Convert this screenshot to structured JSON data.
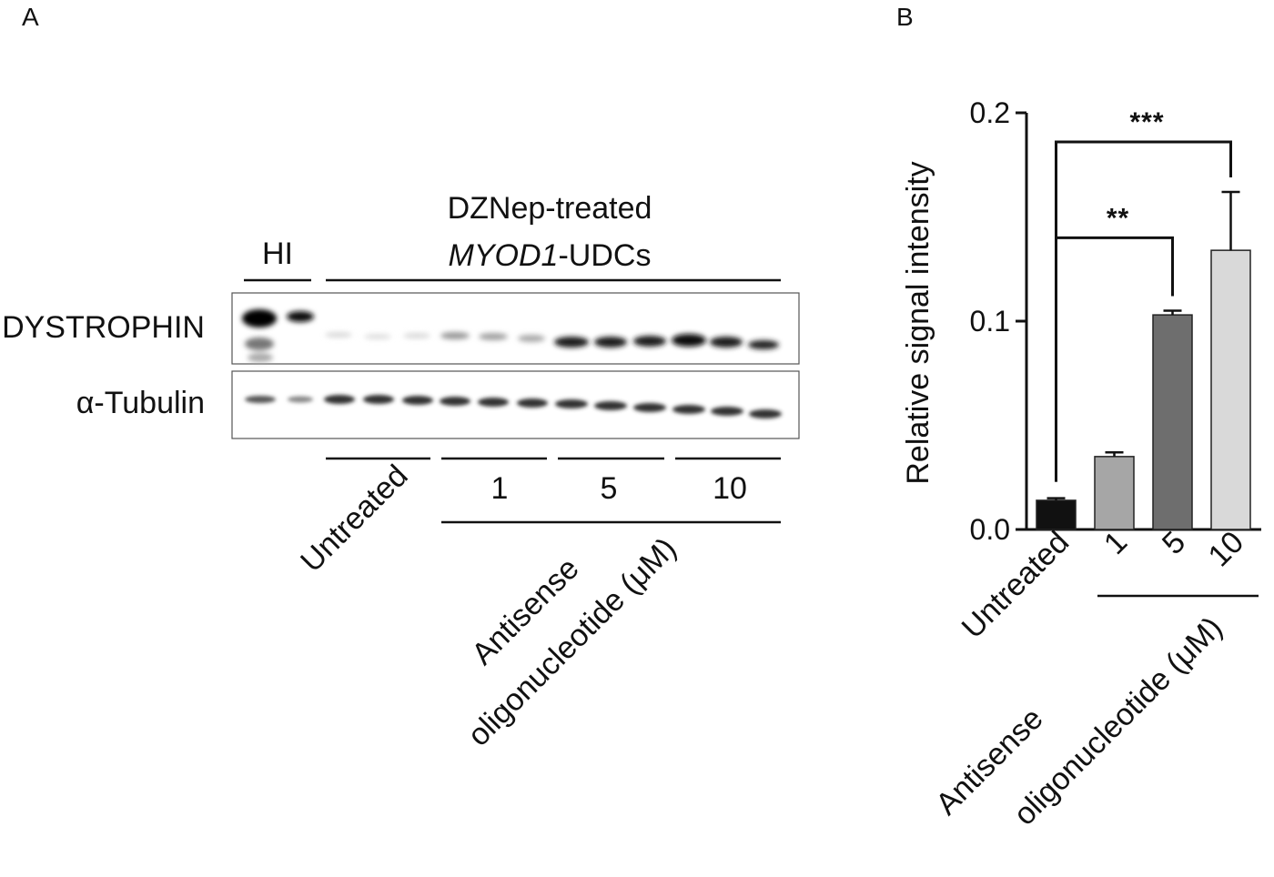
{
  "panel_a": {
    "letter": "A",
    "header_line1": "DZNep-treated",
    "header_line2_italic": "MYOD1",
    "header_line2_rest": "-UDCs",
    "hi_label": "HI",
    "row_labels": [
      "DYSTROPHIN",
      "α-Tubulin"
    ],
    "group_labels": [
      "Untreated",
      "1",
      "5",
      "10"
    ],
    "axis_label_line1": "Antisense",
    "axis_label_line2": "oligonucleotide (μM)"
  },
  "chart_data": {
    "type": "bar",
    "panel_letter": "B",
    "categories": [
      "Untreated",
      "1",
      "5",
      "10"
    ],
    "values": [
      0.014,
      0.035,
      0.103,
      0.134
    ],
    "errors": [
      0.001,
      0.002,
      0.002,
      0.028
    ],
    "colors": [
      "#111111",
      "#a6a6a6",
      "#6e6e6e",
      "#d9d9d9"
    ],
    "ylabel": "Relative signal intensity",
    "ylim": [
      0,
      0.2
    ],
    "yticks": [
      "0.0",
      "0.1",
      "0.2"
    ],
    "ytick_values": [
      0,
      0.1,
      0.2
    ],
    "xlabel_line1": "Antisense",
    "xlabel_line2": "oligonucleotide (μM)",
    "significance": [
      {
        "from": "Untreated",
        "to": "5",
        "label": "**"
      },
      {
        "from": "Untreated",
        "to": "10",
        "label": "***"
      }
    ]
  }
}
